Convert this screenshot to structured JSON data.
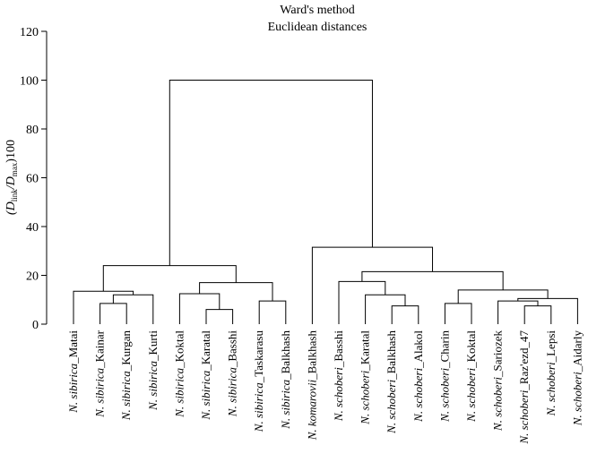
{
  "chart_data": {
    "type": "dendrogram",
    "title_line1": "Ward's method",
    "title_line2": "Euclidean distances",
    "ylabel_parts": [
      "(D",
      "link",
      "/D",
      "max",
      ")100"
    ],
    "ylim": [
      0,
      120
    ],
    "yticks": [
      "0",
      "20",
      "40",
      "60",
      "80",
      "100",
      "120"
    ],
    "leaves": [
      {
        "species": "N. sibirica",
        "place": "_Matai"
      },
      {
        "species": "N. sibirica",
        "place": "_Kainar"
      },
      {
        "species": "N. sibirica",
        "place": "_Kurgan"
      },
      {
        "species": "N. sibirica",
        "place": "_Kurti"
      },
      {
        "species": "N. sibirica",
        "place": "_Koktal"
      },
      {
        "species": "N. sibirica",
        "place": "_Karatal"
      },
      {
        "species": "N. sibirica",
        "place": "_Basshi"
      },
      {
        "species": "N. sibirica",
        "place": "_Taskarasu"
      },
      {
        "species": "N. sibirica",
        "place": "_Balkhash"
      },
      {
        "species": "N. komarovii",
        "place": "_Balkhash"
      },
      {
        "species": "N. schoberi",
        "place": "_Basshi"
      },
      {
        "species": "N. schoberi",
        "place": "_Karatal"
      },
      {
        "species": "N. schoberi",
        "place": "_Balkhash"
      },
      {
        "species": "N. schoberi",
        "place": "_Alakol"
      },
      {
        "species": "N. schoberi",
        "place": "_Charin"
      },
      {
        "species": "N. schoberi",
        "place": "_Koktal"
      },
      {
        "species": "N. schoberi",
        "place": "_Sariozek"
      },
      {
        "species": "N. schoberi",
        "place": "_Raz'ezd_47"
      },
      {
        "species": "N. schoberi",
        "place": "_Lepsi"
      },
      {
        "species": "N. schoberi",
        "place": "_Aidarly"
      }
    ],
    "merges": [
      {
        "a": {
          "leaf": 1
        },
        "b": {
          "leaf": 2
        },
        "height": 8.5
      },
      {
        "a": {
          "node": 0
        },
        "b": {
          "leaf": 3
        },
        "height": 12
      },
      {
        "a": {
          "leaf": 0
        },
        "b": {
          "node": 1
        },
        "height": 13.5
      },
      {
        "a": {
          "leaf": 5
        },
        "b": {
          "leaf": 6
        },
        "height": 6
      },
      {
        "a": {
          "leaf": 4
        },
        "b": {
          "node": 3
        },
        "height": 12.5
      },
      {
        "a": {
          "leaf": 7
        },
        "b": {
          "leaf": 8
        },
        "height": 9.5
      },
      {
        "a": {
          "node": 4
        },
        "b": {
          "node": 5
        },
        "height": 17
      },
      {
        "a": {
          "node": 2
        },
        "b": {
          "node": 6
        },
        "height": 24
      },
      {
        "a": {
          "leaf": 12
        },
        "b": {
          "leaf": 13
        },
        "height": 7.5
      },
      {
        "a": {
          "leaf": 11
        },
        "b": {
          "node": 8
        },
        "height": 12
      },
      {
        "a": {
          "leaf": 10
        },
        "b": {
          "node": 9
        },
        "height": 17.5
      },
      {
        "a": {
          "leaf": 14
        },
        "b": {
          "leaf": 15
        },
        "height": 8.5
      },
      {
        "a": {
          "leaf": 17
        },
        "b": {
          "leaf": 18
        },
        "height": 7.5
      },
      {
        "a": {
          "leaf": 16
        },
        "b": {
          "node": 12
        },
        "height": 9.5
      },
      {
        "a": {
          "node": 13
        },
        "b": {
          "leaf": 19
        },
        "height": 10.5
      },
      {
        "a": {
          "node": 11
        },
        "b": {
          "node": 14
        },
        "height": 14
      },
      {
        "a": {
          "node": 10
        },
        "b": {
          "node": 15
        },
        "height": 21.5
      },
      {
        "a": {
          "leaf": 9
        },
        "b": {
          "node": 16
        },
        "height": 31.5
      },
      {
        "a": {
          "node": 7
        },
        "b": {
          "node": 17
        },
        "height": 100
      }
    ]
  }
}
